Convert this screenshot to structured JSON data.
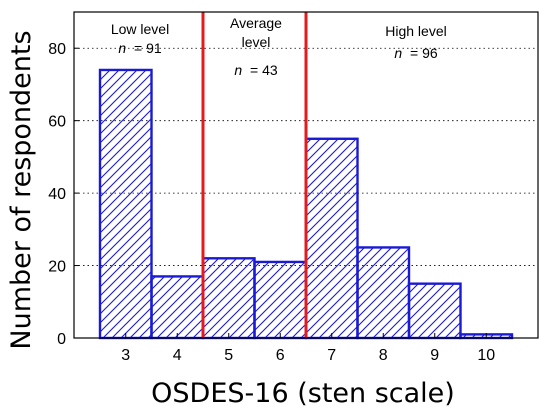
{
  "chart_data": {
    "type": "bar",
    "xlabel": "OSDES-16 (sten scale)",
    "ylabel": "Number of respondents",
    "categories": [
      "3",
      "4",
      "5",
      "6",
      "7",
      "8",
      "9",
      "10"
    ],
    "values": [
      74,
      17,
      22,
      21,
      55,
      25,
      15,
      1
    ],
    "ylim": [
      0,
      90
    ],
    "yticks": [
      "0",
      "20",
      "40",
      "60",
      "80"
    ],
    "grid": "horizontal dotted",
    "bar_fill": "diagonal hatch",
    "colors": {
      "bar": "#1a1ad6",
      "divider": "#e41a1c",
      "axis": "#000000"
    },
    "annotations": [
      {
        "lines": [
          "Low level"
        ],
        "n_label": "n",
        "n_value": "= 91"
      },
      {
        "lines": [
          "Average",
          "level"
        ],
        "n_label": "n",
        "n_value": "= 43"
      },
      {
        "lines": [
          "High level"
        ],
        "n_label": "n",
        "n_value": "= 96"
      }
    ]
  }
}
